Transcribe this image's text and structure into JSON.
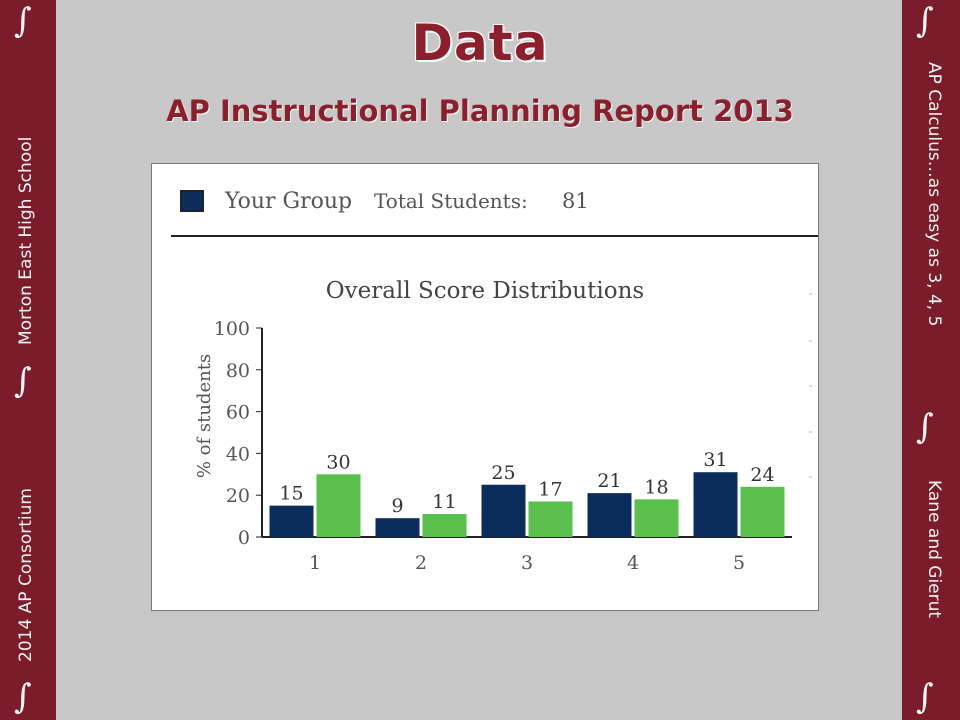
{
  "slide": {
    "title": "Data",
    "subtitle": "AP Instructional Planning Report 2013"
  },
  "left_sidebar": {
    "text_top": "Morton East High School",
    "text_bottom": "2014 AP Consortium",
    "symbol": "∫"
  },
  "right_sidebar": {
    "text_top": "AP Calculus…as easy as 3, 4, 5",
    "text_bottom": "Kane and Gierut",
    "symbol": "∫"
  },
  "colors": {
    "sidebar": "#7a1c2a",
    "title": "#8b1f2c",
    "your_group": "#0b2d5b",
    "comparison": "#5bbf4e"
  },
  "report": {
    "legend_label": "Your Group",
    "total_label": "Total Students:",
    "total_value": "81"
  },
  "chart_data": {
    "type": "bar",
    "title": "Overall Score Distributions",
    "ylabel": "% of students",
    "xlabel": "",
    "categories": [
      "1",
      "2",
      "3",
      "4",
      "5"
    ],
    "series": [
      {
        "name": "Your Group",
        "values": [
          15,
          9,
          25,
          21,
          31
        ]
      },
      {
        "values": [
          30,
          11,
          17,
          18,
          24
        ]
      }
    ],
    "ylim": [
      0,
      100
    ],
    "yticks": [
      0,
      20,
      40,
      60,
      80,
      100
    ],
    "grid": false
  }
}
